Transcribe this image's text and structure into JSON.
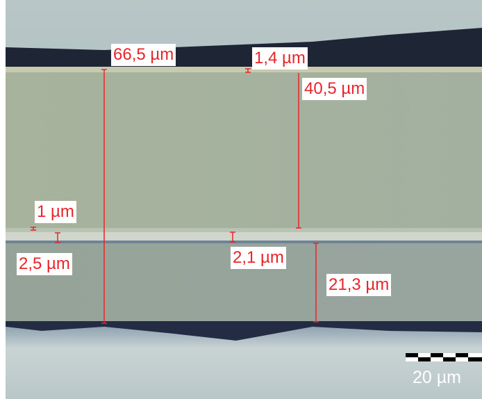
{
  "measurements": [
    {
      "label": "66,5 µm"
    },
    {
      "label": "1,4 µm"
    },
    {
      "label": "40,5 µm"
    },
    {
      "label": "1 µm"
    },
    {
      "label": "2,5 µm"
    },
    {
      "label": "2,1 µm"
    },
    {
      "label": "21,3 µm"
    }
  ],
  "scale_bar": {
    "label": "20 µm"
  }
}
